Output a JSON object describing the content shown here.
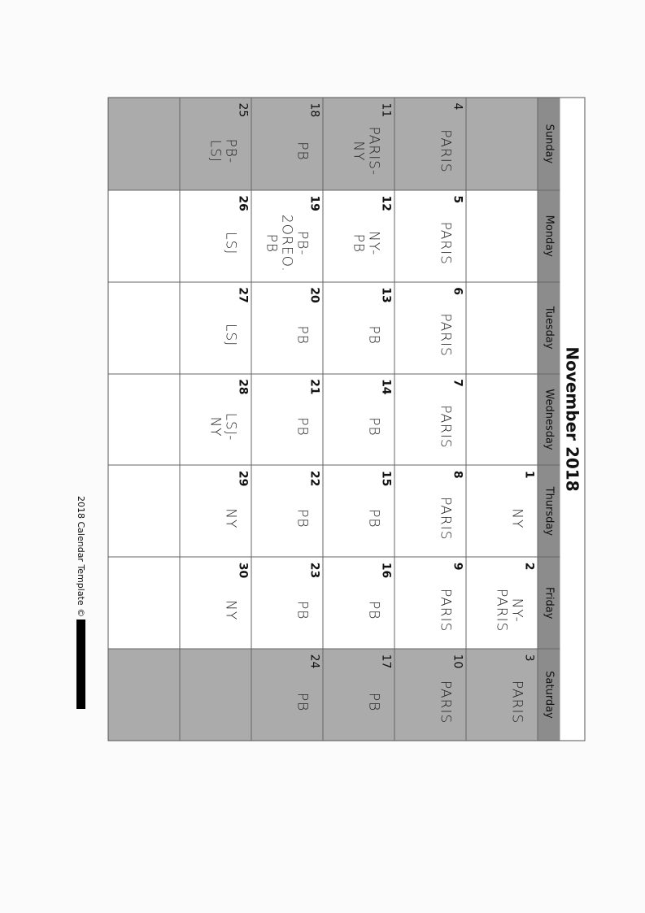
{
  "title": "November 2018",
  "days": [
    "Sunday",
    "Monday",
    "Tuesday",
    "Wednesday",
    "Thursday",
    "Friday",
    "Saturday"
  ],
  "weeks": [
    [
      {
        "d": "",
        "n": ""
      },
      {
        "d": "",
        "n": ""
      },
      {
        "d": "",
        "n": ""
      },
      {
        "d": "",
        "n": ""
      },
      {
        "d": "1",
        "n": "NY"
      },
      {
        "d": "2",
        "n": "NY-\nPARIS"
      },
      {
        "d": "3",
        "n": "PARIS"
      }
    ],
    [
      {
        "d": "4",
        "n": "PARIS"
      },
      {
        "d": "5",
        "n": "PARIS"
      },
      {
        "d": "6",
        "n": "PARIS"
      },
      {
        "d": "7",
        "n": "PARIS"
      },
      {
        "d": "8",
        "n": "PARIS"
      },
      {
        "d": "9",
        "n": "PARIS"
      },
      {
        "d": "10",
        "n": "PARIS"
      }
    ],
    [
      {
        "d": "11",
        "n": "PARIS-\nNY"
      },
      {
        "d": "12",
        "n": "NY-\nPB"
      },
      {
        "d": "13",
        "n": "PB"
      },
      {
        "d": "14",
        "n": "PB"
      },
      {
        "d": "15",
        "n": "PB"
      },
      {
        "d": "16",
        "n": "PB"
      },
      {
        "d": "17",
        "n": "PB"
      }
    ],
    [
      {
        "d": "18",
        "n": "PB"
      },
      {
        "d": "19",
        "n": "PB-\n2OREO.\nPB"
      },
      {
        "d": "20",
        "n": "PB"
      },
      {
        "d": "21",
        "n": "PB"
      },
      {
        "d": "22",
        "n": "PB"
      },
      {
        "d": "23",
        "n": "PB"
      },
      {
        "d": "24",
        "n": "PB"
      }
    ],
    [
      {
        "d": "25",
        "n": "PB-\nLSJ"
      },
      {
        "d": "26",
        "n": "LSJ"
      },
      {
        "d": "27",
        "n": "LSJ"
      },
      {
        "d": "28",
        "n": "LSJ-\nNY"
      },
      {
        "d": "29",
        "n": "NY"
      },
      {
        "d": "30",
        "n": "NY"
      },
      {
        "d": "",
        "n": ""
      }
    ],
    [
      {
        "d": "",
        "n": ""
      },
      {
        "d": "",
        "n": ""
      },
      {
        "d": "",
        "n": ""
      },
      {
        "d": "",
        "n": ""
      },
      {
        "d": "",
        "n": ""
      },
      {
        "d": "",
        "n": ""
      },
      {
        "d": "",
        "n": ""
      }
    ]
  ],
  "footer": "2018 Calendar Template ©",
  "colors": {
    "header": "#8c8c8c",
    "weekend": "#ababab"
  }
}
